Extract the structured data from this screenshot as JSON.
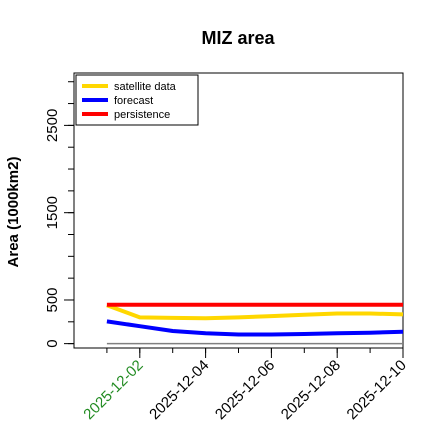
{
  "chart_data": {
    "type": "line",
    "title": "MIZ area",
    "xlabel": "",
    "ylabel": "Area (1000km2)",
    "x": [
      "2025-12-01",
      "2025-12-02",
      "2025-12-03",
      "2025-12-04",
      "2025-12-05",
      "2025-12-06",
      "2025-12-07",
      "2025-12-08",
      "2025-12-09",
      "2025-12-10"
    ],
    "xticks": [
      "2025-12-02",
      "2025-12-04",
      "2025-12-06",
      "2025-12-08",
      "2025-12-10"
    ],
    "yticks": [
      0,
      500,
      1500,
      2500
    ],
    "ylim": [
      -50,
      3100
    ],
    "xlim": [
      "2025-11-30",
      "2025-12-10"
    ],
    "grid": false,
    "legend_position": "top-left",
    "baseline": 0,
    "series": [
      {
        "name": "satellite data",
        "color": "#ffd700",
        "values": [
          440,
          300,
          295,
          290,
          300,
          315,
          330,
          345,
          345,
          335
        ]
      },
      {
        "name": "forecast",
        "color": "#0000ff",
        "values": [
          255,
          200,
          145,
          120,
          105,
          105,
          110,
          120,
          125,
          135
        ]
      },
      {
        "name": "persistence",
        "color": "#ff0000",
        "values": [
          445,
          445,
          445,
          445,
          445,
          445,
          445,
          445,
          445,
          445
        ]
      }
    ],
    "highlight_tick": {
      "label": "2025-12-02",
      "color": "#228b22"
    },
    "baseline_color": "#808080"
  }
}
